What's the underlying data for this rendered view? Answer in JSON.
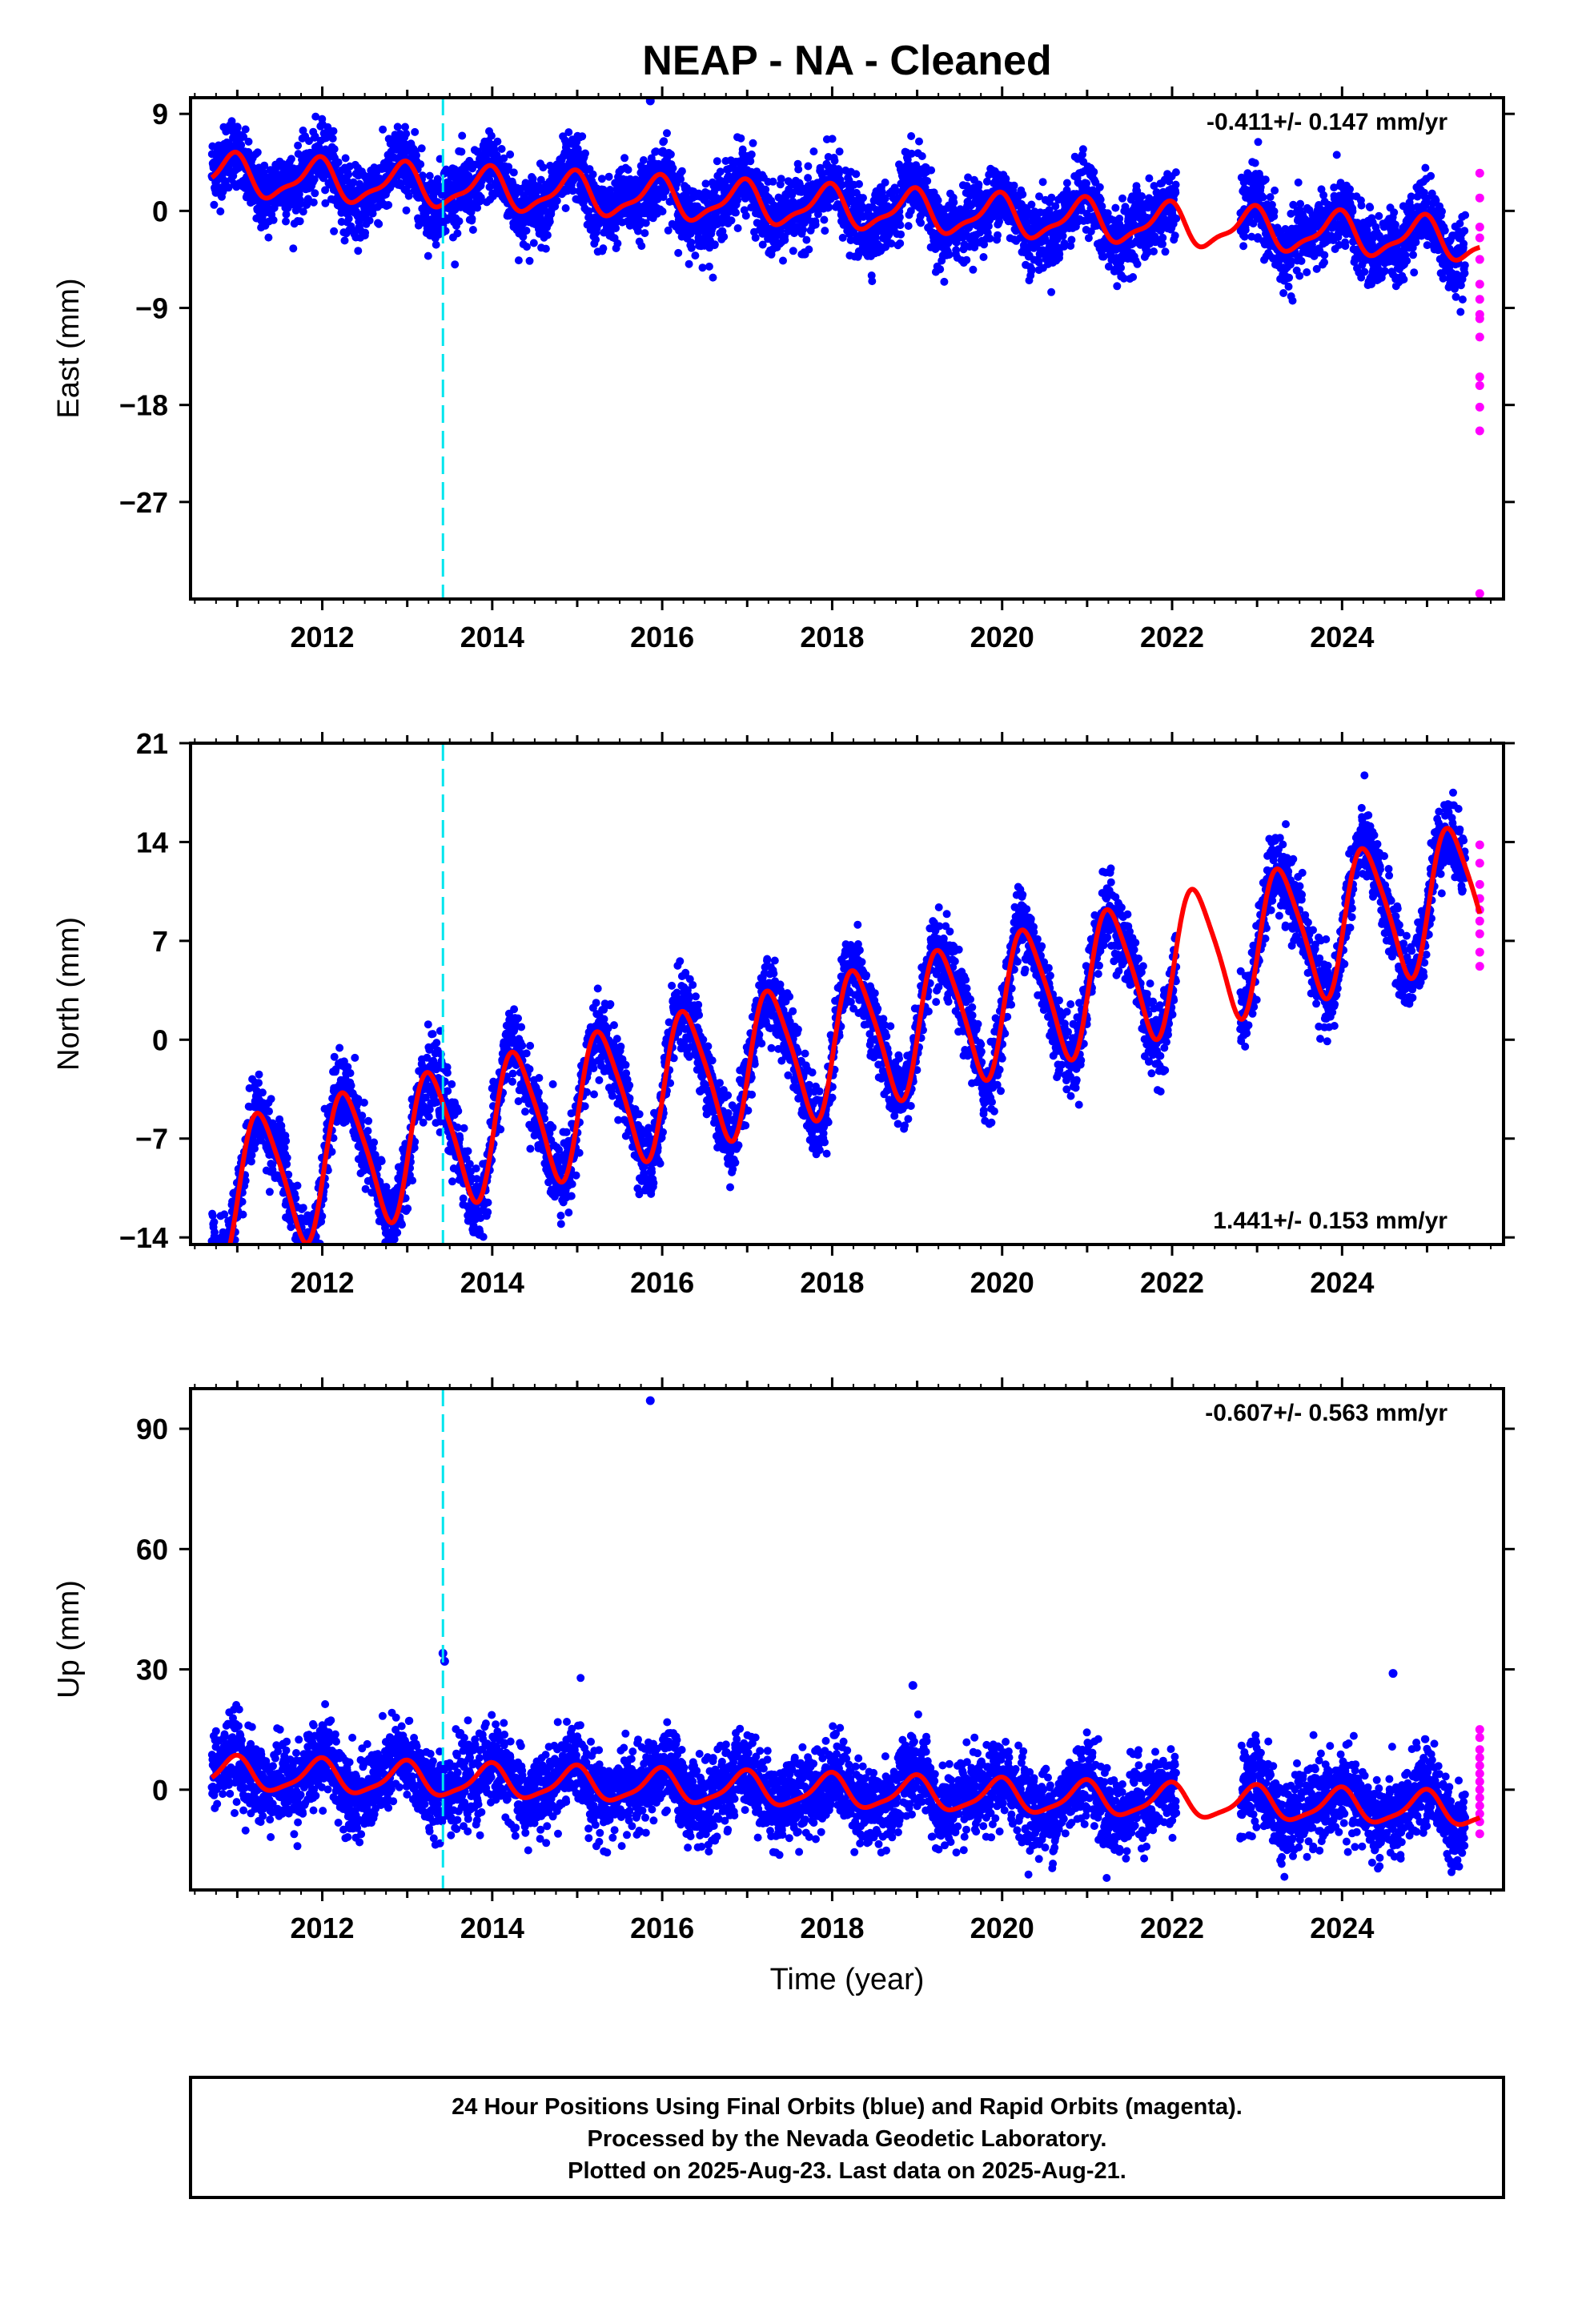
{
  "title": "NEAP  - NA - Cleaned",
  "colors": {
    "final_orbits": "#0000ff",
    "rapid_orbits": "#ff00ff",
    "model_fit": "#ff0000",
    "equipment_change": "#00e5ee",
    "frame": "#000000"
  },
  "chart_data": [
    {
      "type": "scatter",
      "id": "east",
      "ylabel": "East (mm)",
      "ylim": [
        -36,
        10.5
      ],
      "yticks": [
        9,
        0,
        -9,
        -18,
        -27
      ],
      "xlim": [
        2010.45,
        2025.9
      ],
      "xticks": [
        2012,
        2014,
        2016,
        2018,
        2020,
        2022,
        2024
      ],
      "rate_label": "-0.411+/- 0.147 mm/yr",
      "rate_position": "top-right",
      "trend": {
        "intercept_2018": 0.3,
        "rate": -0.411,
        "annual_amp": 1.8,
        "semiannual_amp": 0.6,
        "annual_phase": 2.0
      },
      "scatter_sigma": 1.6,
      "outliers_final": [
        {
          "x": 2015.86,
          "y": 10.2
        }
      ],
      "rapid_points": [
        3.5,
        1.2,
        -1.5,
        -2.5,
        -4.5,
        -6.8,
        -8.2,
        -9.6,
        -10.0,
        -11.7,
        -15.4,
        -16.2,
        -18.2,
        -20.4,
        -35.5
      ],
      "data_gap": [
        2022.05,
        2022.8
      ]
    },
    {
      "type": "scatter",
      "id": "north",
      "ylabel": "North (mm)",
      "ylim": [
        -14.5,
        21
      ],
      "yticks": [
        21,
        14,
        7,
        0,
        -7,
        -14
      ],
      "xlim": [
        2010.45,
        2025.9
      ],
      "xticks": [
        2012,
        2014,
        2016,
        2018,
        2020,
        2022,
        2024
      ],
      "rate_label": "1.441+/- 0.153 mm/yr",
      "rate_position": "bottom-right",
      "trend": {
        "intercept_2018": -0.3,
        "rate": 1.441,
        "annual_amp": 4.8,
        "semiannual_amp": 0.8,
        "annual_phase": -0.2
      },
      "scatter_sigma": 1.3,
      "outliers_final": [],
      "rapid_points": [
        13.8,
        12.5,
        11.0,
        10.0,
        9.2,
        8.4,
        7.5,
        6.2,
        5.2
      ],
      "data_gap": [
        2022.05,
        2022.8
      ]
    },
    {
      "type": "scatter",
      "id": "up",
      "ylabel": "Up (mm)",
      "xlabel": "Time (year)",
      "ylim": [
        -25,
        100
      ],
      "yticks": [
        90,
        60,
        30,
        0
      ],
      "xlim": [
        2010.45,
        2025.9
      ],
      "xticks": [
        2012,
        2014,
        2016,
        2018,
        2020,
        2022,
        2024
      ],
      "rate_label": "-0.607+/- 0.563 mm/yr",
      "rate_position": "top-right",
      "trend": {
        "intercept_2018": -0.5,
        "rate": -0.607,
        "annual_amp": 4.0,
        "semiannual_amp": 1.0,
        "annual_phase": 1.8
      },
      "scatter_sigma": 5.0,
      "outliers_final": [
        {
          "x": 2015.86,
          "y": 97
        },
        {
          "x": 2013.42,
          "y": 34
        },
        {
          "x": 2013.44,
          "y": 32
        },
        {
          "x": 2018.95,
          "y": 26
        },
        {
          "x": 2024.6,
          "y": 29
        }
      ],
      "rapid_points": [
        15,
        13,
        10,
        8,
        6,
        4,
        2,
        0,
        -2,
        -4,
        -6,
        -8,
        -11
      ],
      "data_gap": [
        2022.05,
        2022.8
      ]
    }
  ],
  "equipment_change_x": 2013.42,
  "data_start_x": 2010.7,
  "final_end_x": 2025.45,
  "rapid_x": 2025.62,
  "footer": {
    "line1": "24 Hour Positions Using Final Orbits (blue) and Rapid Orbits (magenta).",
    "line2": "Processed by the Nevada Geodetic Laboratory.",
    "line3": "Plotted on 2025-Aug-23. Last data on 2025-Aug-21."
  }
}
